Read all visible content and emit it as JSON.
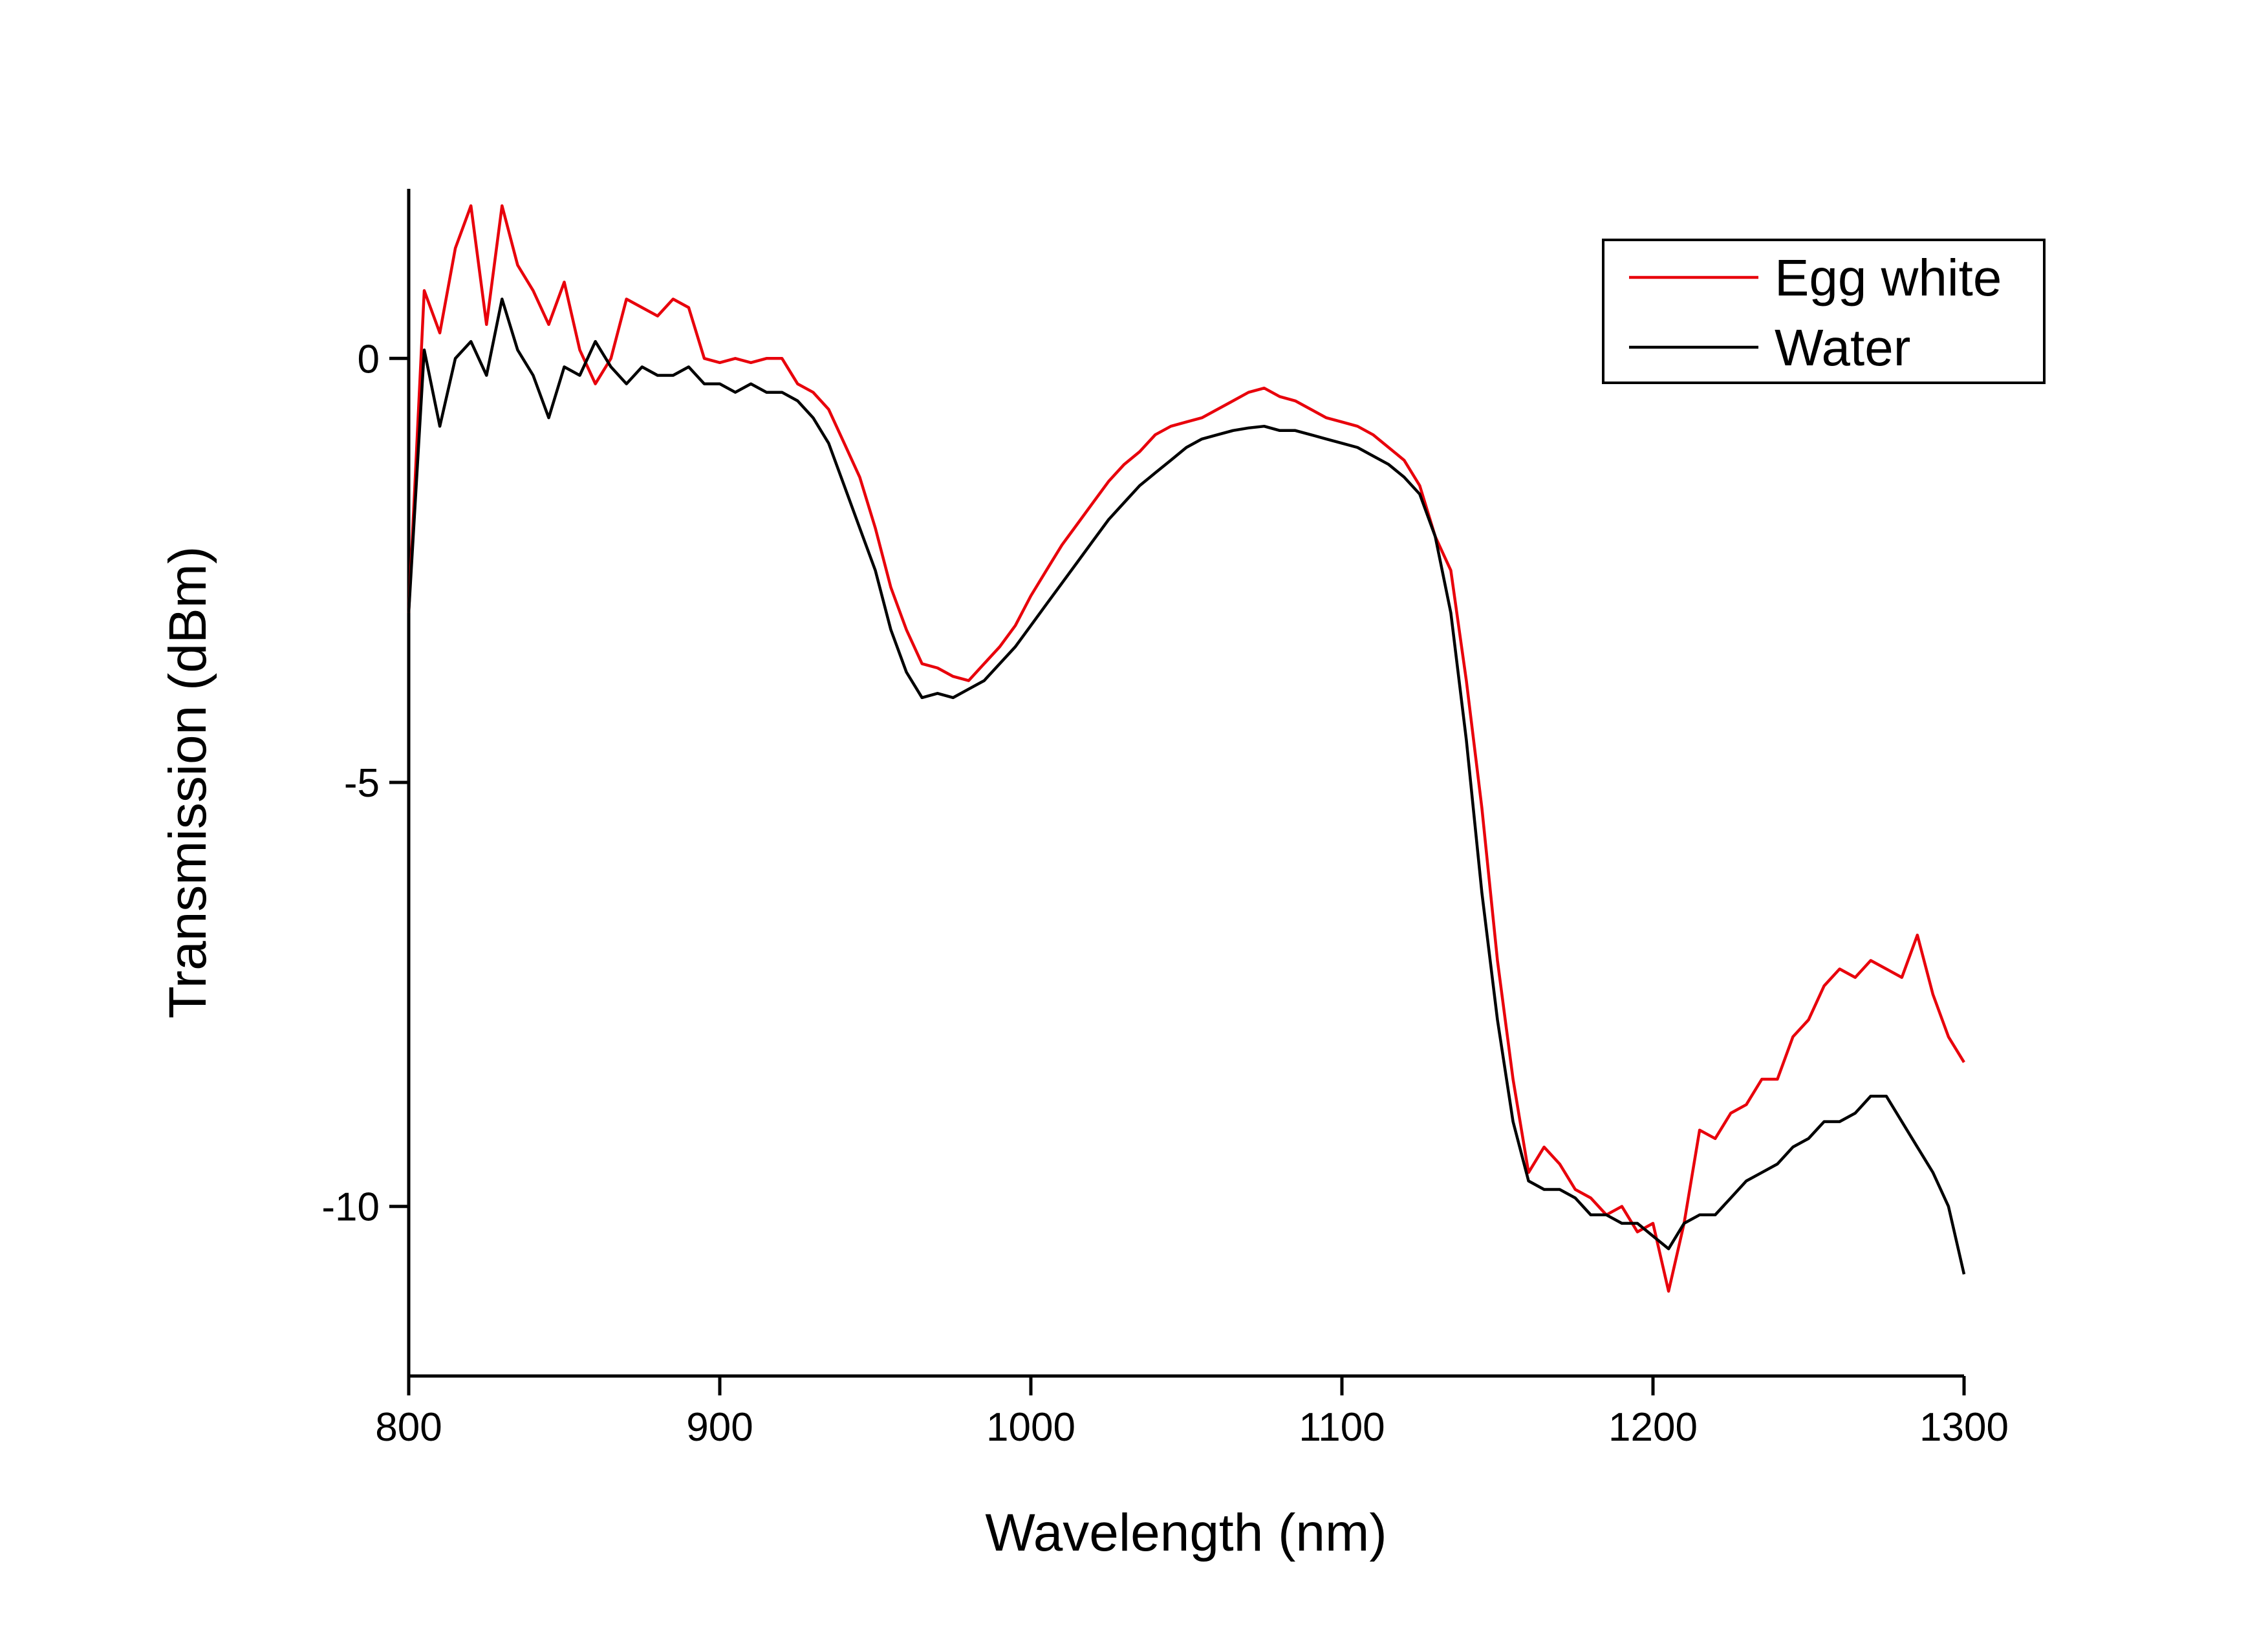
{
  "chart_data": {
    "type": "line",
    "x_label": "Wavelength (nm)",
    "y_label": "Transmission (dBm)",
    "x": [
      800,
      805,
      810,
      815,
      820,
      825,
      830,
      835,
      840,
      845,
      850,
      855,
      860,
      865,
      870,
      875,
      880,
      885,
      890,
      895,
      900,
      905,
      910,
      915,
      920,
      925,
      930,
      935,
      940,
      945,
      950,
      955,
      960,
      965,
      970,
      975,
      980,
      985,
      990,
      995,
      1000,
      1005,
      1010,
      1015,
      1020,
      1025,
      1030,
      1035,
      1040,
      1045,
      1050,
      1055,
      1060,
      1065,
      1070,
      1075,
      1080,
      1085,
      1090,
      1095,
      1100,
      1105,
      1110,
      1115,
      1120,
      1125,
      1130,
      1135,
      1140,
      1145,
      1150,
      1155,
      1160,
      1165,
      1170,
      1175,
      1180,
      1185,
      1190,
      1195,
      1200,
      1205,
      1210,
      1215,
      1220,
      1225,
      1230,
      1235,
      1240,
      1245,
      1250,
      1255,
      1260,
      1265,
      1270,
      1275,
      1280,
      1285,
      1290,
      1295,
      1300
    ],
    "series": [
      {
        "name": "Egg white",
        "color": "#e8000b",
        "values": [
          -3.0,
          0.8,
          0.3,
          1.3,
          1.8,
          0.4,
          1.8,
          1.1,
          0.8,
          0.4,
          0.9,
          0.1,
          -0.3,
          0.0,
          0.7,
          0.6,
          0.5,
          0.7,
          0.6,
          0.0,
          -0.05,
          0.0,
          -0.05,
          0.0,
          0.0,
          -0.3,
          -0.4,
          -0.6,
          -1.0,
          -1.4,
          -2.0,
          -2.7,
          -3.2,
          -3.6,
          -3.65,
          -3.75,
          -3.8,
          -3.6,
          -3.4,
          -3.15,
          -2.8,
          -2.5,
          -2.2,
          -1.95,
          -1.7,
          -1.45,
          -1.25,
          -1.1,
          -0.9,
          -0.8,
          -0.75,
          -0.7,
          -0.6,
          -0.5,
          -0.4,
          -0.35,
          -0.45,
          -0.5,
          -0.6,
          -0.7,
          -0.75,
          -0.8,
          -0.9,
          -1.05,
          -1.2,
          -1.5,
          -2.1,
          -2.5,
          -3.8,
          -5.3,
          -7.1,
          -8.5,
          -9.6,
          -9.3,
          -9.5,
          -9.8,
          -9.9,
          -10.1,
          -10.0,
          -10.3,
          -10.2,
          -11.0,
          -10.2,
          -9.1,
          -9.2,
          -8.9,
          -8.8,
          -8.5,
          -8.5,
          -8.0,
          -7.8,
          -7.4,
          -7.2,
          -7.3,
          -7.1,
          -7.2,
          -7.3,
          -6.8,
          -7.5,
          -8.0,
          -8.3
        ]
      },
      {
        "name": "Water",
        "color": "#000000",
        "values": [
          -3.0,
          0.1,
          -0.8,
          0.0,
          0.2,
          -0.2,
          0.7,
          0.1,
          -0.2,
          -0.7,
          -0.1,
          -0.2,
          0.2,
          -0.1,
          -0.3,
          -0.1,
          -0.2,
          -0.2,
          -0.1,
          -0.3,
          -0.3,
          -0.4,
          -0.3,
          -0.4,
          -0.4,
          -0.5,
          -0.7,
          -1.0,
          -1.5,
          -2.0,
          -2.5,
          -3.2,
          -3.7,
          -4.0,
          -3.95,
          -4.0,
          -3.9,
          -3.8,
          -3.6,
          -3.4,
          -3.15,
          -2.9,
          -2.65,
          -2.4,
          -2.15,
          -1.9,
          -1.7,
          -1.5,
          -1.35,
          -1.2,
          -1.05,
          -0.95,
          -0.9,
          -0.85,
          -0.82,
          -0.8,
          -0.85,
          -0.85,
          -0.9,
          -0.95,
          -1.0,
          -1.05,
          -1.15,
          -1.25,
          -1.4,
          -1.6,
          -2.1,
          -3.0,
          -4.5,
          -6.3,
          -7.8,
          -9.0,
          -9.7,
          -9.8,
          -9.8,
          -9.9,
          -10.1,
          -10.1,
          -10.2,
          -10.2,
          -10.35,
          -10.5,
          -10.2,
          -10.1,
          -10.1,
          -9.9,
          -9.7,
          -9.6,
          -9.5,
          -9.3,
          -9.2,
          -9.0,
          -9.0,
          -8.9,
          -8.7,
          -8.7,
          -9.0,
          -9.3,
          -9.6,
          -10.0,
          -10.8
        ]
      }
    ],
    "xlim": [
      800,
      1300
    ],
    "xticks": [
      800,
      900,
      1000,
      1100,
      1200,
      1300
    ],
    "ylim": [
      -12,
      2
    ],
    "yticks": [
      -10,
      -5,
      0
    ],
    "grid": false,
    "legend": "upper right"
  }
}
